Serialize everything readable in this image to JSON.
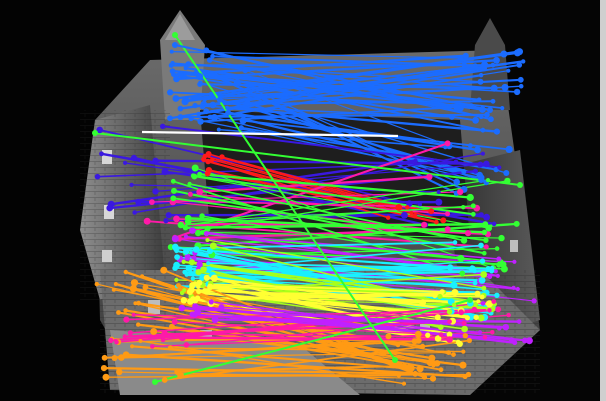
{
  "image": {
    "description": "",
    "subject": "photograph-of-building-model",
    "overlay": "feature-correspondence-lines",
    "colors": {
      "background": "#000000",
      "building_light": "#9a9a9a",
      "building_mid": "#5c5c5c",
      "building_dark": "#1c1c1c",
      "blue": "#1b6cff",
      "indigo": "#3a18e0",
      "red": "#ff1a1a",
      "magenta": "#ff19a8",
      "purple": "#c020ff",
      "green": "#33ff33",
      "lime": "#a8ff1a",
      "cyan": "#19f0ff",
      "yellow": "#ffff33",
      "orange": "#ff9a14",
      "white": "#ffffff"
    }
  }
}
